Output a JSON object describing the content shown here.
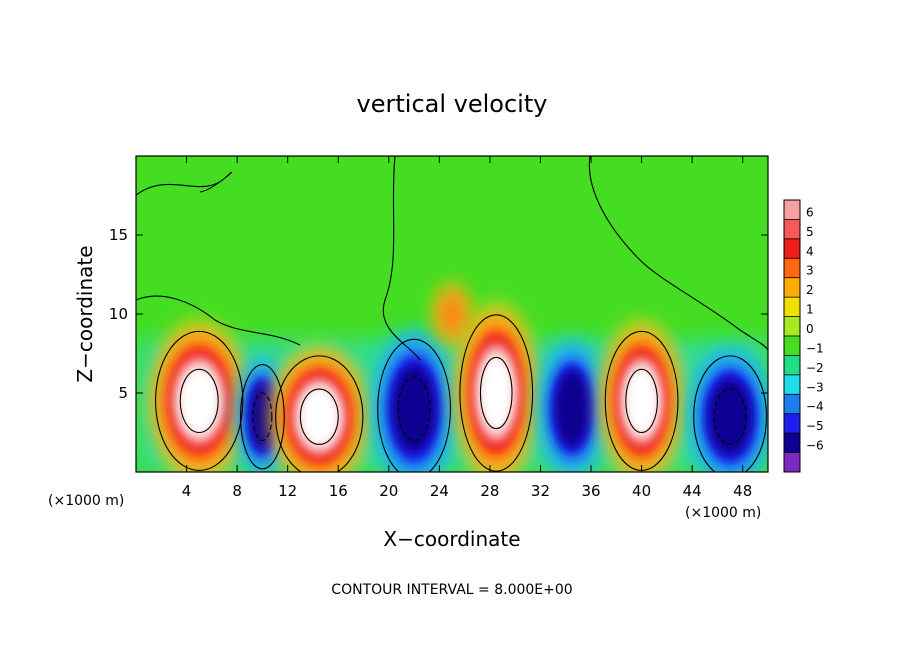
{
  "chart_data": {
    "type": "heatmap",
    "title": "vertical velocity",
    "xlabel": "X−coordinate",
    "ylabel": "Z−coordinate",
    "x_units": "(×1000 m)",
    "z_units": "(×1000 m)",
    "xlim": [
      0,
      50
    ],
    "ylim": [
      0,
      20
    ],
    "x_ticks": [
      4,
      8,
      12,
      16,
      20,
      24,
      28,
      32,
      36,
      40,
      44,
      48
    ],
    "y_ticks": [
      5,
      10,
      15
    ],
    "colorbar": {
      "ticks": [
        6,
        5,
        4,
        3,
        2,
        1,
        0,
        -1,
        -2,
        -3,
        -4,
        -5,
        -6
      ],
      "tick_labels": [
        "6",
        "5",
        "4",
        "3",
        "2",
        "1",
        "0",
        "−1",
        "−2",
        "−3",
        "−4",
        "−5",
        "−6"
      ],
      "colors": [
        "#f7a0a0",
        "#f55a5a",
        "#ee1c1c",
        "#ff6a10",
        "#ffaa00",
        "#f0e000",
        "#a8e820",
        "#44dd22",
        "#22dd88",
        "#22ddee",
        "#1e7ff0",
        "#1e1ef0",
        "#100090",
        "#7a2ac0"
      ]
    },
    "contour_interval": "CONTOUR INTERVAL = 8.000E+00",
    "cells": [
      {
        "x": 5,
        "z": 4.5,
        "w": 6,
        "h": 8,
        "value": 7
      },
      {
        "x": 10,
        "z": 3.5,
        "w": 3,
        "h": 6,
        "value": -6
      },
      {
        "x": 14.5,
        "z": 3.5,
        "w": 6,
        "h": 7,
        "value": 7
      },
      {
        "x": 22,
        "z": 4,
        "w": 5,
        "h": 8,
        "value": -6
      },
      {
        "x": 28.5,
        "z": 5,
        "w": 5,
        "h": 9,
        "value": 7
      },
      {
        "x": 34.5,
        "z": 4,
        "w": 4,
        "h": 7,
        "value": -5
      },
      {
        "x": 40,
        "z": 4.5,
        "w": 5,
        "h": 8,
        "value": 7
      },
      {
        "x": 47,
        "z": 3.5,
        "w": 5,
        "h": 7,
        "value": -6
      },
      {
        "x": 25,
        "z": 10,
        "w": 2,
        "h": 3,
        "value": 3
      }
    ]
  }
}
